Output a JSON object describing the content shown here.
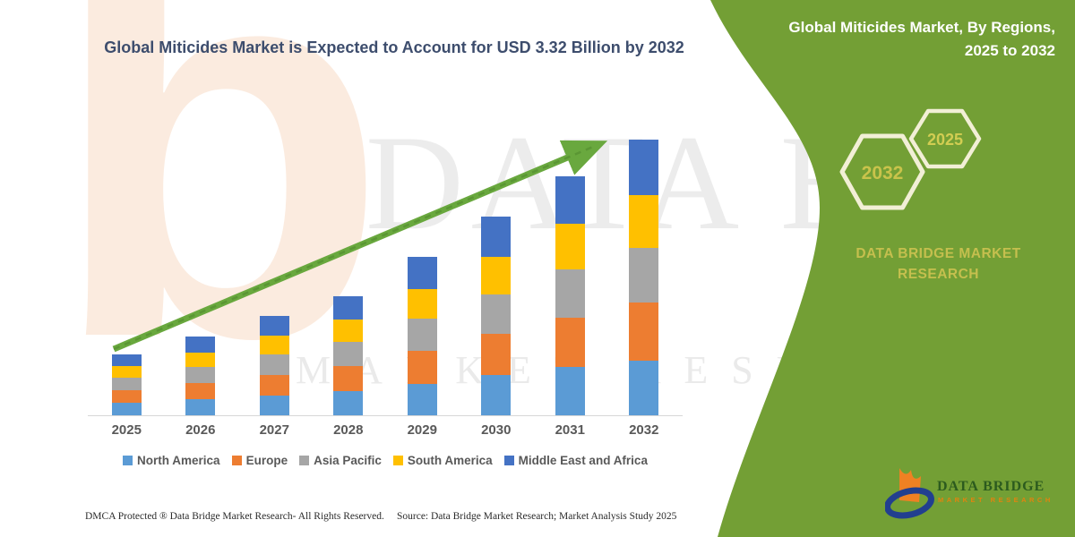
{
  "title": "Global Miticides Market is Expected to Account for USD 3.32 Billion by 2032",
  "panel": {
    "heading": "Global Miticides Market, By Regions, 2025 to 2032",
    "hexagons": [
      {
        "label": "2032"
      },
      {
        "label": "2025"
      }
    ],
    "brand": "DATA BRIDGE MARKET RESEARCH",
    "background_color": "#739f35",
    "hexagon_border_color": "#f2efd6",
    "hexagon_text_color": "#c9c34b"
  },
  "watermark": {
    "line1": "DATA BRIDGE",
    "line2": "MARKET RESEARCH",
    "letter": "b"
  },
  "logo": {
    "name": "DATA BRIDGE",
    "sub": "MARKET RESEARCH",
    "name_color": "#2c5b1e",
    "sub_color": "#e2830f",
    "flame_color": "#ef8123",
    "swoosh_color": "#223f8f"
  },
  "footer": {
    "left": "DMCA Protected ® Data Bridge Market Research- All Rights Reserved.",
    "right": "Source: Data Bridge Market Research; Market Analysis Study 2025"
  },
  "arrow_color": "#69a83e",
  "chart_data": {
    "type": "bar",
    "stacked": true,
    "title": "Global Miticides Market is Expected to Account for USD 3.32 Billion by 2032",
    "unit": "USD Billion",
    "categories": [
      "2025",
      "2026",
      "2027",
      "2028",
      "2029",
      "2030",
      "2031",
      "2032"
    ],
    "series": [
      {
        "name": "North America",
        "color": "#5b9bd5",
        "values": [
          0.15,
          0.19,
          0.24,
          0.29,
          0.38,
          0.48,
          0.58,
          0.66
        ]
      },
      {
        "name": "Europe",
        "color": "#ed7d31",
        "values": [
          0.15,
          0.2,
          0.25,
          0.3,
          0.4,
          0.5,
          0.6,
          0.7
        ]
      },
      {
        "name": "Asia Pacific",
        "color": "#a6a6a6",
        "values": [
          0.15,
          0.19,
          0.24,
          0.29,
          0.38,
          0.48,
          0.58,
          0.66
        ]
      },
      {
        "name": "South America",
        "color": "#ffc000",
        "values": [
          0.14,
          0.18,
          0.23,
          0.27,
          0.36,
          0.45,
          0.55,
          0.63
        ]
      },
      {
        "name": "Middle East and Africa",
        "color": "#4472c4",
        "values": [
          0.14,
          0.19,
          0.24,
          0.28,
          0.39,
          0.48,
          0.57,
          0.67
        ]
      }
    ],
    "totals": [
      0.73,
      0.95,
      1.2,
      1.43,
      1.91,
      2.39,
      2.88,
      3.32
    ],
    "xlabel": "",
    "ylabel": "",
    "y_axis_visible": false,
    "grid": false,
    "legend_position": "bottom",
    "trend_arrow": true
  }
}
